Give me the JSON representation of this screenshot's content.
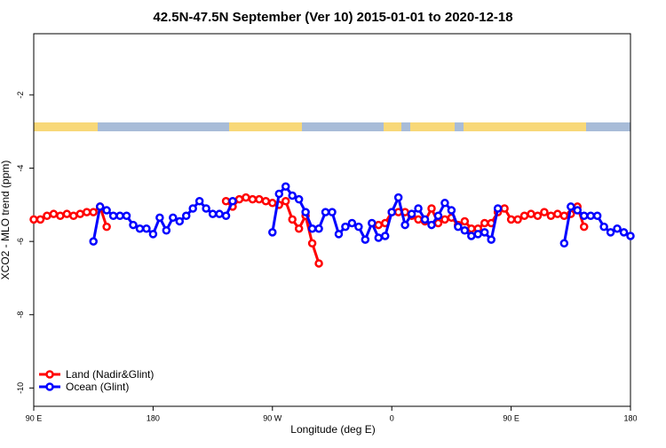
{
  "chart_data": {
    "type": "line",
    "title": "42.5N-47.5N September (Ver 10)   2015-01-01 to 2020-12-18",
    "x_label": "Longitude (deg E)",
    "y_label": "XCO2 - MLO trend (ppm)",
    "x": [
      90,
      95,
      100,
      105,
      110,
      115,
      120,
      125,
      130,
      135,
      140,
      145,
      150,
      155,
      160,
      165,
      170,
      175,
      180,
      185,
      190,
      195,
      200,
      205,
      210,
      215,
      220,
      225,
      230,
      235,
      240,
      245,
      250,
      255,
      260,
      265,
      270,
      275,
      280,
      285,
      290,
      295,
      300,
      305,
      310,
      315,
      320,
      325,
      330,
      335,
      340,
      345,
      350,
      355,
      360,
      365,
      370,
      375,
      380,
      385,
      390,
      395,
      400,
      405,
      410,
      415,
      420,
      425,
      430,
      435,
      440,
      445,
      450,
      455,
      460,
      465,
      470,
      475,
      480,
      485,
      490,
      495,
      500,
      505,
      510,
      515,
      520,
      525,
      530,
      535,
      540
    ],
    "xlim": [
      90,
      540
    ],
    "xticks": [
      {
        "value": 90,
        "label": "90 E"
      },
      {
        "value": 180,
        "label": "180"
      },
      {
        "value": 270,
        "label": "90 W"
      },
      {
        "value": 360,
        "label": "0"
      },
      {
        "value": 450,
        "label": "90 E"
      },
      {
        "value": 540,
        "label": "180"
      }
    ],
    "ylim": [
      -10.5,
      -0.33
    ],
    "yticks": [
      -10,
      -8,
      -6,
      -4,
      -2
    ],
    "legend": "bottom-left",
    "series": [
      {
        "name": "Land (Nadir&Glint)",
        "color": "#ff0000",
        "values": [
          -5.4,
          -5.4,
          -5.3,
          -5.25,
          -5.3,
          -5.25,
          -5.3,
          -5.25,
          -5.2,
          -5.2,
          -5.05,
          -5.6,
          null,
          null,
          null,
          null,
          null,
          null,
          null,
          null,
          null,
          null,
          null,
          null,
          null,
          null,
          null,
          null,
          null,
          -4.9,
          -5.05,
          -4.85,
          -4.8,
          -4.85,
          -4.85,
          -4.9,
          -4.95,
          -5.0,
          -4.9,
          -5.4,
          -5.65,
          -5.3,
          -6.05,
          -6.6,
          null,
          null,
          null,
          null,
          null,
          null,
          null,
          null,
          -5.55,
          -5.5,
          -5.2,
          -5.2,
          -5.2,
          -5.3,
          -5.4,
          -5.45,
          -5.1,
          -5.5,
          -5.4,
          -5.35,
          -5.55,
          -5.45,
          -5.65,
          -5.65,
          -5.5,
          -5.5,
          -5.2,
          -5.1,
          -5.4,
          -5.4,
          -5.3,
          -5.25,
          -5.3,
          -5.2,
          -5.3,
          -5.25,
          -5.3,
          -5.25,
          -5.05,
          -5.6,
          null,
          null,
          null,
          null,
          null,
          null,
          null
        ]
      },
      {
        "name": "Ocean (Glint)",
        "color": "#0000ff",
        "values": [
          null,
          null,
          null,
          null,
          null,
          null,
          null,
          null,
          null,
          -6.0,
          -5.05,
          -5.15,
          -5.3,
          -5.3,
          -5.3,
          -5.55,
          -5.65,
          -5.65,
          -5.8,
          -5.35,
          -5.7,
          -5.35,
          -5.45,
          -5.3,
          -5.1,
          -4.9,
          -5.1,
          -5.25,
          -5.25,
          -5.3,
          -4.9,
          null,
          null,
          null,
          null,
          null,
          -5.75,
          -4.7,
          -4.5,
          -4.75,
          -4.85,
          -5.2,
          -5.65,
          -5.65,
          -5.2,
          -5.2,
          -5.8,
          -5.6,
          -5.5,
          -5.6,
          -5.95,
          -5.5,
          -5.9,
          -5.85,
          -5.2,
          -4.8,
          -5.55,
          -5.25,
          -5.1,
          -5.4,
          -5.55,
          -5.3,
          -4.95,
          -5.15,
          -5.6,
          -5.7,
          -5.85,
          -5.8,
          -5.75,
          -5.95,
          -5.1,
          null,
          null,
          null,
          null,
          null,
          null,
          null,
          null,
          null,
          -6.05,
          -5.05,
          -5.15,
          -5.3,
          -5.3,
          -5.3,
          -5.6,
          -5.75,
          -5.65,
          -5.75,
          -5.85
        ]
      }
    ]
  }
}
